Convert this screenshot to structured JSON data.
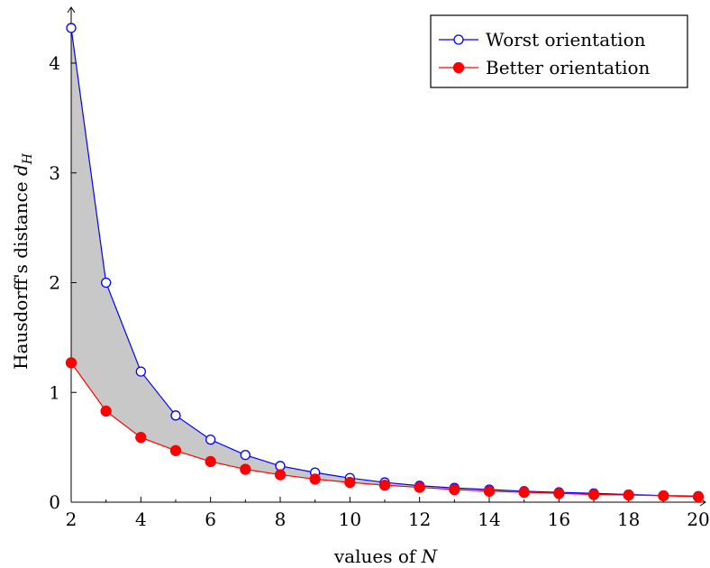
{
  "chart_data": {
    "type": "line",
    "xlabel": "values of N",
    "ylabel": "Hausdorff's distance d_H",
    "xlim": [
      2,
      20
    ],
    "ylim": [
      0,
      4.5
    ],
    "x_ticks": [
      2,
      4,
      6,
      8,
      10,
      12,
      14,
      16,
      18,
      20
    ],
    "y_ticks": [
      0,
      1,
      2,
      3,
      4
    ],
    "legend_position": "top-right",
    "fill_between_series": true,
    "fill_color": "#c8c8c8",
    "x": [
      2,
      3,
      4,
      5,
      6,
      7,
      8,
      9,
      10,
      11,
      12,
      13,
      14,
      15,
      16,
      17,
      18,
      19,
      20
    ],
    "series": [
      {
        "name": "Worst orientation",
        "color": "#0000ff",
        "marker": "open-circle",
        "values": [
          4.32,
          2.0,
          1.19,
          0.79,
          0.57,
          0.43,
          0.33,
          0.27,
          0.22,
          0.18,
          0.15,
          0.13,
          0.115,
          0.1,
          0.09,
          0.08,
          0.07,
          0.06,
          0.055
        ]
      },
      {
        "name": "Better orientation",
        "color": "#ff0000",
        "marker": "filled-circle",
        "values": [
          1.27,
          0.83,
          0.59,
          0.47,
          0.37,
          0.3,
          0.25,
          0.21,
          0.18,
          0.155,
          0.135,
          0.115,
          0.1,
          0.09,
          0.08,
          0.07,
          0.065,
          0.058,
          0.05
        ]
      }
    ]
  }
}
